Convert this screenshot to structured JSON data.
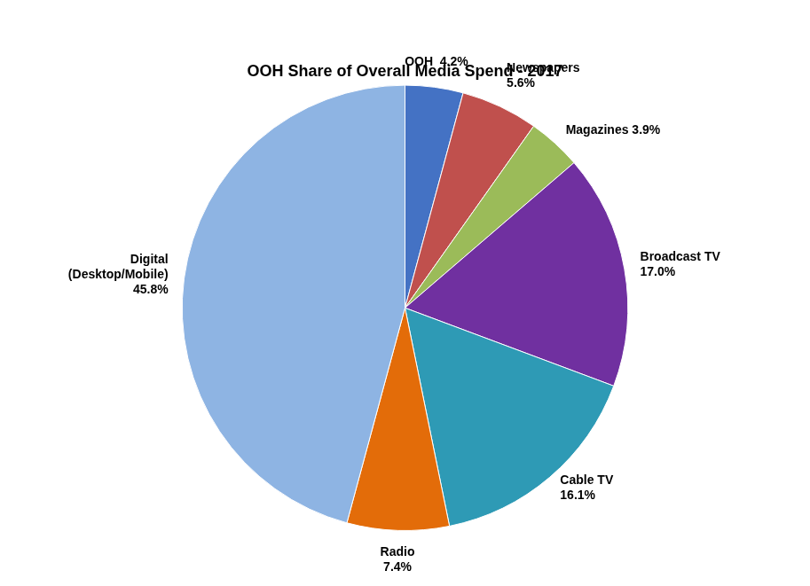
{
  "chart_data": {
    "type": "pie",
    "title": "OOH Share of Overall Media Spend - 2017",
    "categories": [
      "OOH",
      "Newspapers",
      "Magazines",
      "Broadcast TV",
      "Cable TV",
      "Radio",
      "Digital\n(Desktop/Mobile)"
    ],
    "values": [
      4.2,
      5.6,
      3.9,
      17.0,
      16.1,
      7.4,
      45.8
    ],
    "value_labels": [
      "OOH  4.2%",
      "Newspapers\n5.6%",
      "Magazines 3.9%",
      "Broadcast TV\n17.0%",
      "Cable TV\n16.1%",
      "Radio\n7.4%",
      "Digital\n(Desktop/Mobile)\n45.8%"
    ],
    "colors": [
      "#4472C4",
      "#C0504D",
      "#9BBB59",
      "#7030A0",
      "#2E9AB5",
      "#E36C09",
      "#8EB4E3"
    ],
    "data_labels": true
  }
}
